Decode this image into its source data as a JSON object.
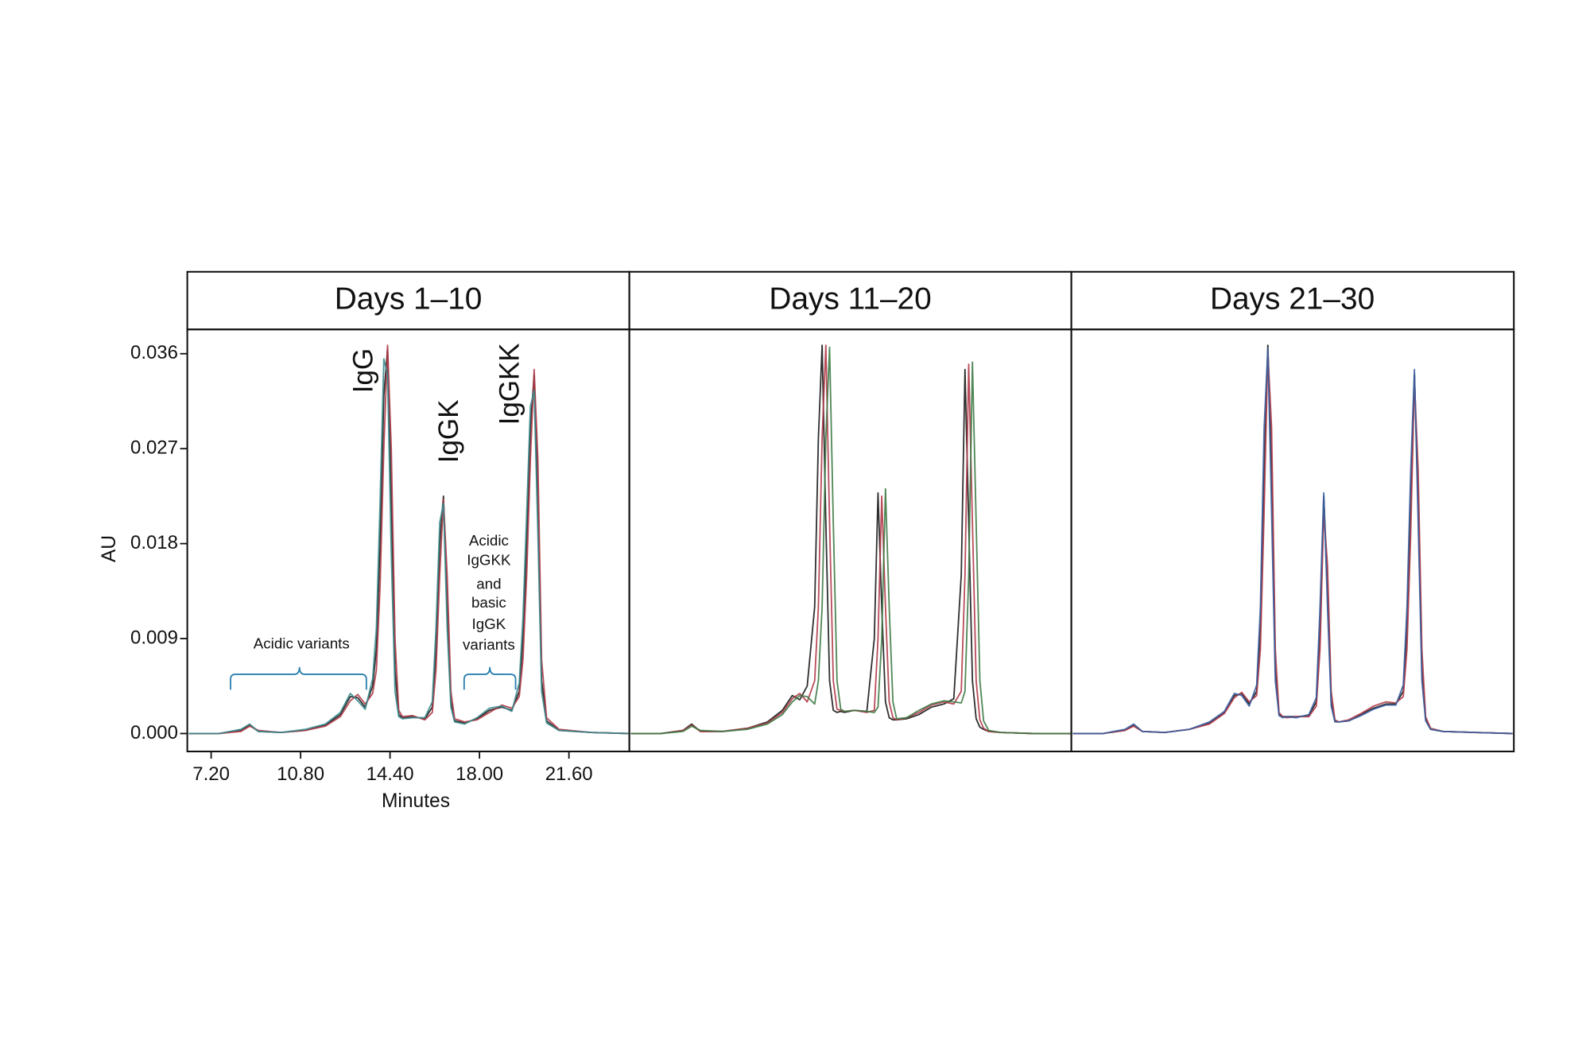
{
  "chart_data": [
    {
      "type": "line",
      "title": "Days 1–10",
      "x_label": "Minutes",
      "y_label": "AU",
      "peak_labels": [
        "IgG",
        "IgGK",
        "IgGKK"
      ],
      "region_labels": [
        "Acidic variants",
        [
          "Acidic",
          "IgGKK",
          "and",
          "basic",
          "IgGK",
          "variants"
        ]
      ],
      "xlim": [
        6.24,
        24.03
      ],
      "ylim": [
        -0.0017,
        0.0383
      ],
      "xticks": [
        {
          "value": 7.2,
          "label": "7.20"
        },
        {
          "value": 10.8,
          "label": "10.80"
        },
        {
          "value": 14.4,
          "label": "14.40"
        },
        {
          "value": 18,
          "label": "18.00"
        },
        {
          "value": 21.6,
          "label": "21.60"
        }
      ],
      "yticks": [
        {
          "value": 0,
          "label": "0.000"
        },
        0.009,
        0.018,
        0.027,
        0.036
      ],
      "x": [
        6.3,
        7.5,
        8.4,
        8.75,
        9.1,
        10.0,
        11.0,
        11.8,
        12.4,
        12.8,
        13.1,
        13.4,
        13.7,
        13.85,
        14.0,
        14.15,
        14.3,
        14.45,
        14.6,
        14.75,
        14.9,
        15.3,
        15.8,
        16.1,
        16.25,
        16.4,
        16.55,
        16.7,
        16.85,
        17.0,
        17.4,
        17.9,
        18.4,
        18.9,
        19.3,
        19.6,
        19.75,
        19.9,
        20.05,
        20.2,
        20.35,
        20.5,
        20.7,
        21.2,
        22.5,
        24.0
      ],
      "series": [
        {
          "color": "#1a1a1a",
          "values": [
            0,
            0,
            0.0003,
            0.0008,
            0.0002,
            0.0001,
            0.0003,
            0.0008,
            0.0018,
            0.0035,
            0.0034,
            0.0025,
            0.0045,
            0.008,
            0.018,
            0.032,
            0.0365,
            0.022,
            0.006,
            0.0018,
            0.0015,
            0.0016,
            0.0014,
            0.0025,
            0.008,
            0.018,
            0.0225,
            0.012,
            0.003,
            0.0012,
            0.001,
            0.0014,
            0.0022,
            0.0025,
            0.0022,
            0.004,
            0.009,
            0.018,
            0.029,
            0.034,
            0.022,
            0.005,
            0.0012,
            0.0003,
            0.0001,
            0
          ]
        },
        {
          "color": "#b03a48",
          "values": [
            0,
            0,
            0.0002,
            0.0007,
            0.0003,
            0.0001,
            0.0003,
            0.0007,
            0.0016,
            0.0031,
            0.0037,
            0.0028,
            0.0038,
            0.006,
            0.014,
            0.027,
            0.0368,
            0.027,
            0.009,
            0.0022,
            0.0016,
            0.0017,
            0.0013,
            0.002,
            0.006,
            0.015,
            0.0222,
            0.015,
            0.004,
            0.0014,
            0.0011,
            0.0013,
            0.002,
            0.0027,
            0.0024,
            0.0035,
            0.007,
            0.015,
            0.026,
            0.0345,
            0.026,
            0.007,
            0.0015,
            0.0004,
            0.0001,
            0
          ]
        },
        {
          "color": "#3a8a8c",
          "values": [
            0,
            0,
            0.0004,
            0.0009,
            0.0002,
            0.0001,
            0.0004,
            0.0009,
            0.002,
            0.0038,
            0.0031,
            0.0023,
            0.0052,
            0.01,
            0.022,
            0.0355,
            0.034,
            0.017,
            0.004,
            0.0016,
            0.0014,
            0.0015,
            0.0015,
            0.003,
            0.01,
            0.02,
            0.0218,
            0.01,
            0.0025,
            0.0011,
            0.0009,
            0.0015,
            0.0024,
            0.0026,
            0.0021,
            0.0048,
            0.011,
            0.021,
            0.031,
            0.0325,
            0.019,
            0.004,
            0.001,
            0.0003,
            0.0001,
            0
          ]
        }
      ]
    },
    {
      "type": "line",
      "title": "Days 11–20",
      "xlim": [
        6.24,
        24.03
      ],
      "ylim": [
        -0.0017,
        0.0383
      ],
      "x": [
        6.3,
        7.5,
        8.4,
        8.75,
        9.1,
        10.0,
        11.0,
        11.8,
        12.4,
        12.8,
        13.1,
        13.4,
        13.7,
        13.85,
        14.0,
        14.15,
        14.3,
        14.45,
        14.6,
        14.75,
        14.9,
        15.3,
        15.8,
        16.1,
        16.25,
        16.4,
        16.55,
        16.7,
        16.85,
        17.0,
        17.4,
        17.9,
        18.4,
        18.9,
        19.3,
        19.6,
        19.75,
        19.9,
        20.05,
        20.2,
        20.35,
        20.5,
        20.7,
        21.2,
        22.5,
        24.0
      ],
      "series": [
        {
          "color": "#1a1a1a",
          "values": [
            0,
            0,
            0.0003,
            0.0009,
            0.0002,
            0.0002,
            0.0005,
            0.0011,
            0.0022,
            0.0036,
            0.0032,
            0.0045,
            0.012,
            0.028,
            0.0368,
            0.02,
            0.005,
            0.0022,
            0.002,
            0.0021,
            0.002,
            0.0022,
            0.0021,
            0.009,
            0.0228,
            0.012,
            0.003,
            0.0015,
            0.0013,
            0.0013,
            0.0014,
            0.0018,
            0.0025,
            0.0028,
            0.0033,
            0.015,
            0.0345,
            0.02,
            0.005,
            0.0014,
            0.0006,
            0.0004,
            0.0002,
            0.0001,
            0,
            0
          ]
        },
        {
          "color": "#b03a48",
          "values": [
            0,
            0,
            0.0003,
            0.0008,
            0.0002,
            0.0002,
            0.0005,
            0.001,
            0.002,
            0.0033,
            0.0038,
            0.003,
            0.005,
            0.012,
            0.028,
            0.0368,
            0.02,
            0.005,
            0.0023,
            0.0022,
            0.0021,
            0.0022,
            0.002,
            0.0022,
            0.009,
            0.0225,
            0.012,
            0.003,
            0.0015,
            0.0013,
            0.0015,
            0.002,
            0.0027,
            0.003,
            0.0028,
            0.004,
            0.015,
            0.035,
            0.02,
            0.005,
            0.0013,
            0.0005,
            0.0002,
            0.0001,
            0,
            0
          ]
        },
        {
          "color": "#3d7a45",
          "values": [
            0,
            0,
            0.0002,
            0.0007,
            0.0003,
            0.0002,
            0.0004,
            0.0009,
            0.0018,
            0.003,
            0.0036,
            0.0035,
            0.0028,
            0.005,
            0.012,
            0.028,
            0.0366,
            0.02,
            0.005,
            0.0023,
            0.0021,
            0.0022,
            0.0021,
            0.002,
            0.0025,
            0.009,
            0.0232,
            0.012,
            0.003,
            0.0014,
            0.0015,
            0.0022,
            0.0028,
            0.0031,
            0.003,
            0.0029,
            0.004,
            0.015,
            0.0352,
            0.02,
            0.005,
            0.0012,
            0.0003,
            0.0001,
            0,
            0
          ]
        }
      ]
    },
    {
      "type": "line",
      "title": "Days 21–30",
      "xlim": [
        6.24,
        24.03
      ],
      "ylim": [
        -0.0017,
        0.0383
      ],
      "x": [
        6.3,
        7.5,
        8.4,
        8.75,
        9.1,
        10.0,
        11.0,
        11.8,
        12.4,
        12.8,
        13.1,
        13.4,
        13.7,
        13.85,
        14.0,
        14.15,
        14.3,
        14.45,
        14.6,
        14.75,
        14.9,
        15.3,
        15.8,
        16.1,
        16.25,
        16.4,
        16.55,
        16.7,
        16.85,
        17.0,
        17.4,
        17.9,
        18.4,
        18.9,
        19.3,
        19.6,
        19.75,
        19.9,
        20.05,
        20.2,
        20.35,
        20.5,
        20.7,
        21.2,
        22.5,
        24.0
      ],
      "series": [
        {
          "color": "#1a1a1a",
          "values": [
            0,
            0,
            0.0003,
            0.0008,
            0.0002,
            0.0001,
            0.0004,
            0.001,
            0.002,
            0.0036,
            0.0038,
            0.0028,
            0.004,
            0.01,
            0.025,
            0.0368,
            0.025,
            0.006,
            0.0018,
            0.0016,
            0.0016,
            0.0016,
            0.0017,
            0.003,
            0.01,
            0.0225,
            0.014,
            0.003,
            0.0012,
            0.0011,
            0.0012,
            0.0018,
            0.0024,
            0.0028,
            0.0028,
            0.004,
            0.01,
            0.022,
            0.034,
            0.022,
            0.006,
            0.0014,
            0.0004,
            0.0002,
            0.0001,
            0
          ]
        },
        {
          "color": "#b03a48",
          "values": [
            0,
            0,
            0.0003,
            0.0007,
            0.0002,
            0.0001,
            0.0004,
            0.0009,
            0.0019,
            0.0034,
            0.0039,
            0.003,
            0.0036,
            0.008,
            0.021,
            0.0362,
            0.029,
            0.008,
            0.002,
            0.0016,
            0.0015,
            0.0016,
            0.0016,
            0.0026,
            0.008,
            0.021,
            0.016,
            0.004,
            0.0013,
            0.0011,
            0.0013,
            0.0019,
            0.0026,
            0.003,
            0.0029,
            0.0035,
            0.008,
            0.019,
            0.0335,
            0.025,
            0.008,
            0.0016,
            0.0005,
            0.0002,
            0.0001,
            0
          ]
        },
        {
          "color": "#3a5fa0",
          "values": [
            0,
            0,
            0.0004,
            0.0009,
            0.0002,
            0.0001,
            0.0004,
            0.0011,
            0.0021,
            0.0038,
            0.0036,
            0.0026,
            0.0046,
            0.012,
            0.029,
            0.0365,
            0.021,
            0.005,
            0.0017,
            0.0015,
            0.0016,
            0.0015,
            0.0018,
            0.0034,
            0.012,
            0.0228,
            0.012,
            0.0026,
            0.0011,
            0.0011,
            0.0012,
            0.0017,
            0.0023,
            0.0027,
            0.0027,
            0.0046,
            0.012,
            0.025,
            0.0345,
            0.02,
            0.005,
            0.0012,
            0.0004,
            0.0002,
            0.0001,
            0
          ]
        }
      ]
    }
  ]
}
